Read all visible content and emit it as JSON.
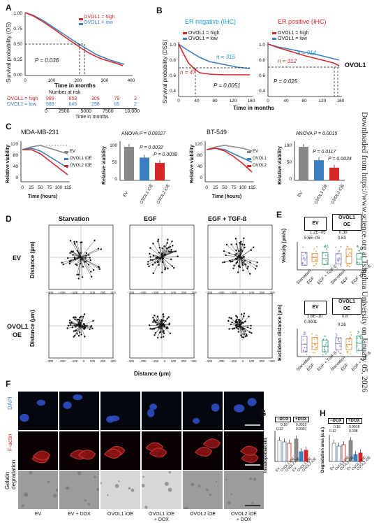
{
  "panels": {
    "A": "A",
    "B": "B",
    "C": "C",
    "D": "D",
    "E": "E",
    "F": "F",
    "G": "G",
    "H": "H"
  },
  "sidebar_text": "Downloaded from https://www.science.org at Tsinghua University on January 05, 2026",
  "A": {
    "ylabel": "Survival probability (OS)",
    "xlabel": "Time in months",
    "legend_high": "OVOL1 = high",
    "legend_low": "OVOL1 = low",
    "pvalue": "P = 0.036",
    "yticks": [
      "0.00",
      "0.25",
      "0.50",
      "0.75",
      "1.00"
    ],
    "xticks": [
      "0",
      "100",
      "200",
      "300",
      "400"
    ],
    "risk_title": "Number at risk",
    "risk_xlabel": "Time in months",
    "risk_xticks": [
      "0",
      "2500",
      "5000",
      "7500",
      "10,000"
    ],
    "risk_high_label": "OVOL1 = high",
    "risk_low_label": "OVOL1 = low",
    "risk_high": [
      "989",
      "653",
      "309",
      "79",
      "3"
    ],
    "risk_low": [
      "989",
      "645",
      "298",
      "65",
      "2"
    ]
  },
  "B": {
    "title_neg": "ER negative (IHC)",
    "title_pos": "ER positive (IHC)",
    "ylabel": "Survival probability (DSS)",
    "xlabel": "Time in months",
    "legend_high": "OVOL1 = high",
    "legend_low": "OVOL1 = low",
    "neg_n_low": "n = 315",
    "neg_n_high": "n = 47",
    "neg_p": "P = 0.0051",
    "pos_n_low": "n = 914",
    "pos_n_high": "n = 312",
    "pos_p": "P = 0.025",
    "gene": "OVOL1",
    "yticks": [
      "0.4",
      "0.6",
      "0.8",
      "1.0"
    ],
    "xticks": [
      "0",
      "40",
      "80",
      "120",
      "160"
    ]
  },
  "C": {
    "title1": "MDA-MB-231",
    "title2": "BT-549",
    "ylabel": "Relative viability",
    "xlabel": "Time (hours)",
    "yticks": [
      "0",
      "40",
      "80",
      "120"
    ],
    "xticks": [
      "0",
      "25",
      "50",
      "75",
      "100",
      "125"
    ],
    "legend1": [
      "EV",
      "OVOL1 iOE",
      "OVOL2 iOE"
    ],
    "legend2": [
      "EV",
      "OVOL1",
      "OVOL2"
    ],
    "bar1": {
      "anova": "ANOVA",
      "anova_p": "P = 0.00027",
      "p1": "P = 0.0032",
      "p2": "P = 0.0038",
      "categories": [
        "EV",
        "OVOL1 iOE",
        "OVOL2 iOE"
      ],
      "values": [
        100,
        68,
        52
      ],
      "yticks": [
        "0",
        "50",
        "100"
      ]
    },
    "bar2": {
      "anova": "ANOVA",
      "anova_p": "P = 0.0015",
      "p1": "P = 0.0117",
      "p2": "P = 0.0034",
      "categories": [
        "EV",
        "OVOL1 iOE",
        "OVOL2 iOE"
      ],
      "values": [
        100,
        60,
        38
      ],
      "yticks": [
        "0",
        "50",
        "100"
      ]
    }
  },
  "D": {
    "cols": [
      "Starvation",
      "EGF",
      "EGF + TGF-ß"
    ],
    "rows": [
      "EV",
      "OVOL1\nOE"
    ],
    "row1": "EV",
    "row2a": "OVOL1",
    "row2b": "OE",
    "ylabel": "Distance (µm)",
    "xlabel": "Distance (µm)",
    "ticks": [
      "−300",
      "−200",
      "−100",
      "0",
      "100",
      "200",
      "300"
    ]
  },
  "E": {
    "group1": "EV",
    "group2a": "OVOL1",
    "group2b": "OE",
    "vel_ylabel": "Velocity (µm/s)",
    "dist_ylabel": "Euclidean distance (µm)",
    "vel_p": [
      "1.2E−05",
      "5.5E−05",
      "0.39",
      "0.53"
    ],
    "dist_p": [
      "2.6E−10",
      "0.0001",
      "0.8",
      "0.36"
    ],
    "conditions": [
      "Starvation",
      "EGF",
      "EGF + TGF-ß",
      "Starvation",
      "EGF",
      "EGF + TGF-ß"
    ]
  },
  "F": {
    "rows": [
      "DAPI",
      "F-actin",
      "Gelatin degradation"
    ],
    "row_gel_a": "Gelatin",
    "row_gel_b": "degradation",
    "conditions": [
      "EV",
      "EV + DOX",
      "OVOL1 iOE",
      "OVOL1 iOE + DOX",
      "OVOL2 iOE",
      "OVOL2 iOE + DOX"
    ],
    "cond_lines": [
      [
        "EV",
        ""
      ],
      [
        "EV + DOX",
        ""
      ],
      [
        "OVOL1 iOE",
        ""
      ],
      [
        "OVOL1 iOE",
        "+ DOX"
      ],
      [
        "OVOL2 iOE",
        ""
      ],
      [
        "OVOL2 iOE",
        "+ DOX"
      ]
    ]
  },
  "G": {
    "ylabel": "Invadopodia/cells",
    "dox_minus": "−DOX",
    "dox_plus": "+DOX",
    "pvals": [
      "0.18",
      "0.12",
      "0.0032",
      "0.0007"
    ],
    "categories": [
      "EV",
      "OVOL1 iOE",
      "OVOL2 iOE",
      "EV",
      "OVOL1 iOE",
      "OVOL2 iOE"
    ]
  },
  "H": {
    "ylabel": "Degradation area (a.u.)",
    "dox_minus": "−DOX",
    "dox_plus": "+DOX",
    "pvals": [
      "0.16",
      "0.12",
      "0.0018",
      "0.008"
    ],
    "categories": [
      "EV",
      "OVOL1 iOE",
      "OVOL2 iOE",
      "EV",
      "OVOL1 iOE",
      "OVOL2 iOE"
    ]
  },
  "colors": {
    "red": "#d62728",
    "blue": "#3a7fc1",
    "gray": "#888888",
    "cyan": "#1a9fd6"
  }
}
